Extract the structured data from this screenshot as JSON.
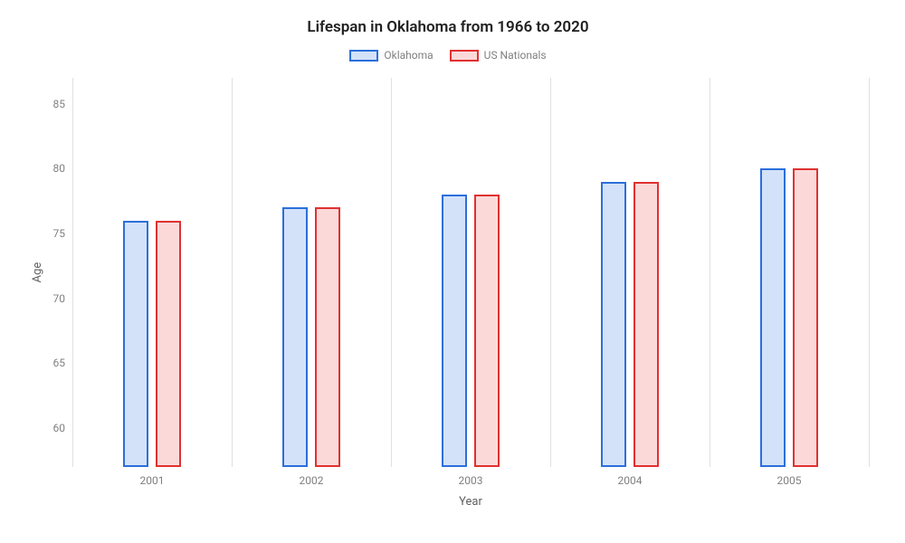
{
  "chart": {
    "type": "bar",
    "title": "Lifespan in Oklahoma from 1966 to 2020",
    "title_fontsize": 17,
    "title_color": "#202020",
    "background_color": "#ffffff",
    "xlabel": "Year",
    "ylabel": "Age",
    "label_fontsize": 13,
    "label_color": "#606060",
    "tick_fontsize": 12,
    "tick_color": "#808080",
    "categories": [
      "2001",
      "2002",
      "2003",
      "2004",
      "2005"
    ],
    "series": [
      {
        "name": "Oklahoma",
        "values": [
          76,
          77,
          78,
          79,
          80
        ],
        "border_color": "#2c6fdb",
        "fill_color": "#d3e2f9"
      },
      {
        "name": "US Nationals",
        "values": [
          76,
          77,
          78,
          79,
          80
        ],
        "border_color": "#e03131",
        "fill_color": "#fbd9d9"
      }
    ],
    "ylim": [
      57,
      87
    ],
    "yticks": [
      60,
      65,
      70,
      75,
      80,
      85
    ],
    "grid_color": "#e0e0e0",
    "bar_width_pct": 3.2,
    "bar_gap_pct": 0.9,
    "legend_swatch_w": 32,
    "legend_swatch_h": 13
  }
}
